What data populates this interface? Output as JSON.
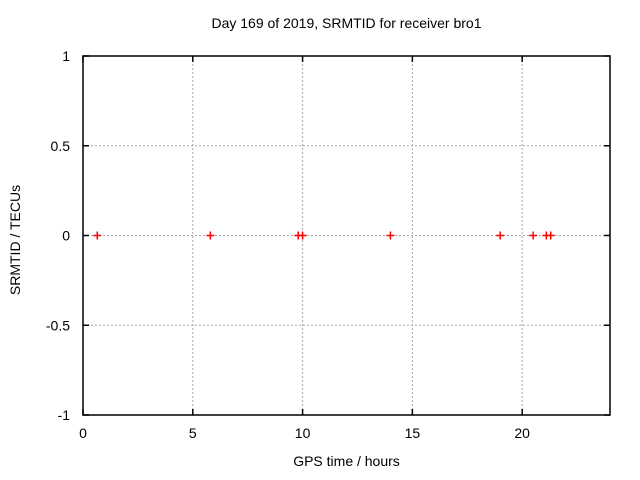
{
  "chart_data": {
    "type": "scatter",
    "title": "Day 169 of 2019, SRMTID for receiver bro1",
    "xlabel": "GPS time / hours",
    "ylabel": "SRMTID / TECUs",
    "xlim": [
      0,
      24
    ],
    "ylim": [
      -1,
      1
    ],
    "xticks": {
      "values": [
        0,
        5,
        10,
        15,
        20
      ],
      "labels": [
        "0",
        "5",
        "10",
        "15",
        "20"
      ]
    },
    "yticks": {
      "values": [
        1,
        0.5,
        0,
        -0.5,
        -1
      ],
      "labels": [
        "1",
        "0.5",
        "0",
        "-0.5",
        "-1"
      ]
    },
    "grid": "dotted",
    "legend": "none",
    "background_color": "#ffffff",
    "border_color": "#000000",
    "grid_color": "#a8a8a8",
    "series": [
      {
        "name": "SRMTID",
        "marker": "plus",
        "color": "#ff0000",
        "points": [
          [
            0.65,
            0
          ],
          [
            5.8,
            0
          ],
          [
            9.8,
            0
          ],
          [
            10.0,
            0
          ],
          [
            14.0,
            0
          ],
          [
            19.0,
            0
          ],
          [
            20.5,
            0
          ],
          [
            21.1,
            0
          ],
          [
            21.3,
            0
          ]
        ]
      }
    ]
  }
}
